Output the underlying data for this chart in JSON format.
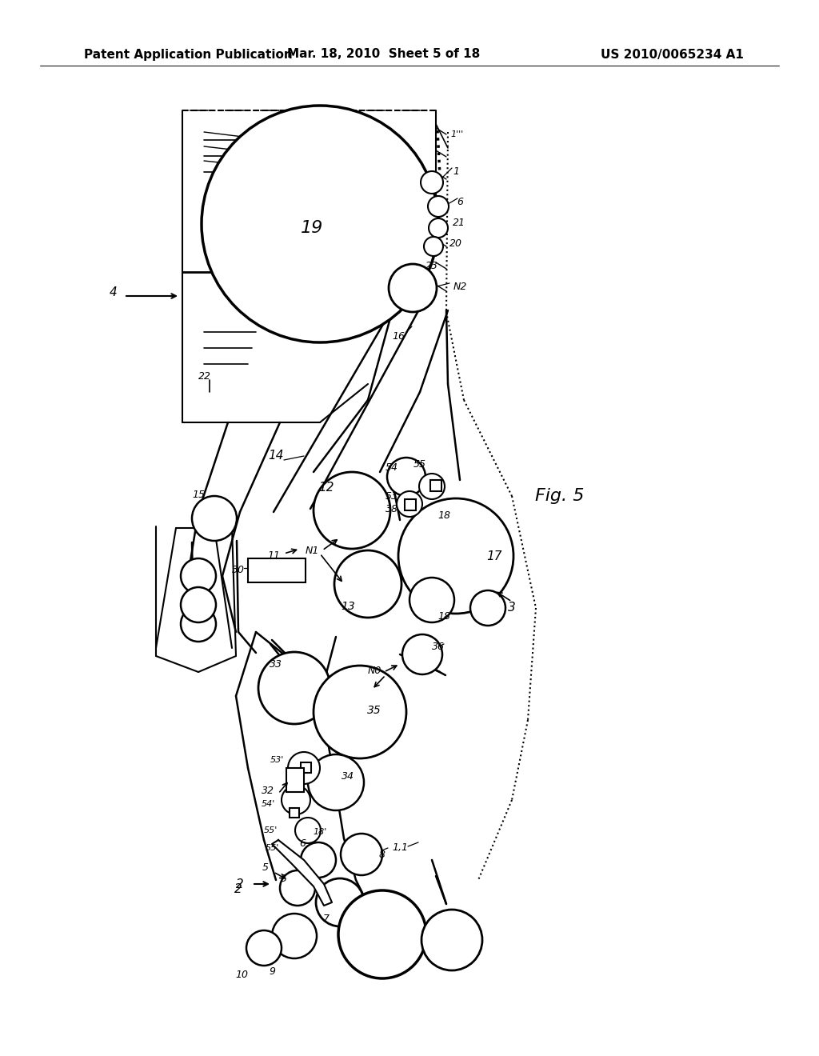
{
  "header_left": "Patent Application Publication",
  "header_mid": "Mar. 18, 2010  Sheet 5 of 18",
  "header_right": "US 2010/0065234 A1",
  "bg_color": "#ffffff",
  "line_color": "#000000",
  "fig_label": "Fig. 5"
}
